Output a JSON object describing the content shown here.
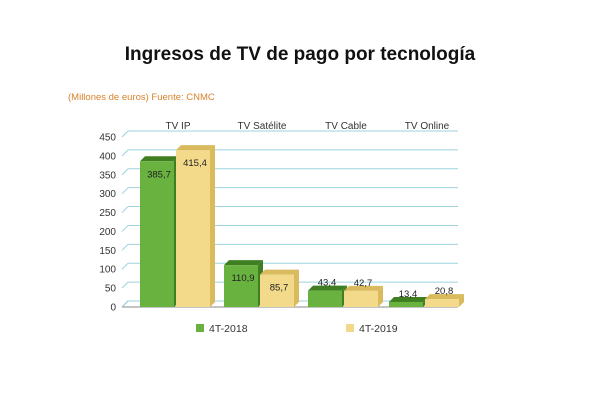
{
  "title": "Ingresos de TV de pago por tecnología",
  "subtitle": "(Millones de euros) Fuente: CNMC",
  "colors": {
    "series_2018": "#6ab23f",
    "series_2018_dark": "#3f7f22",
    "series_2019": "#f3d98a",
    "series_2019_dark": "#d9ba5c",
    "grid": "#9bd3e0",
    "axis": "#888888"
  },
  "chart_data": {
    "type": "bar",
    "categories": [
      "TV IP",
      "TV Satélite",
      "TV Cable",
      "TV Online"
    ],
    "series": [
      {
        "name": "4T-2018",
        "values": [
          385.7,
          110.9,
          43.4,
          13.4
        ],
        "labels": [
          "385,7",
          "110,9",
          "43,4",
          "13,4"
        ]
      },
      {
        "name": "4T-2019",
        "values": [
          415.4,
          85.7,
          42.7,
          20.8
        ],
        "labels": [
          "415,4",
          "85,7",
          "42,7",
          "20,8"
        ]
      }
    ],
    "ylim": [
      0,
      450
    ],
    "yticks": [
      "0",
      "50",
      "100",
      "150",
      "200",
      "250",
      "300",
      "350",
      "400",
      "450"
    ],
    "grid": true,
    "legend_position": "bottom"
  }
}
